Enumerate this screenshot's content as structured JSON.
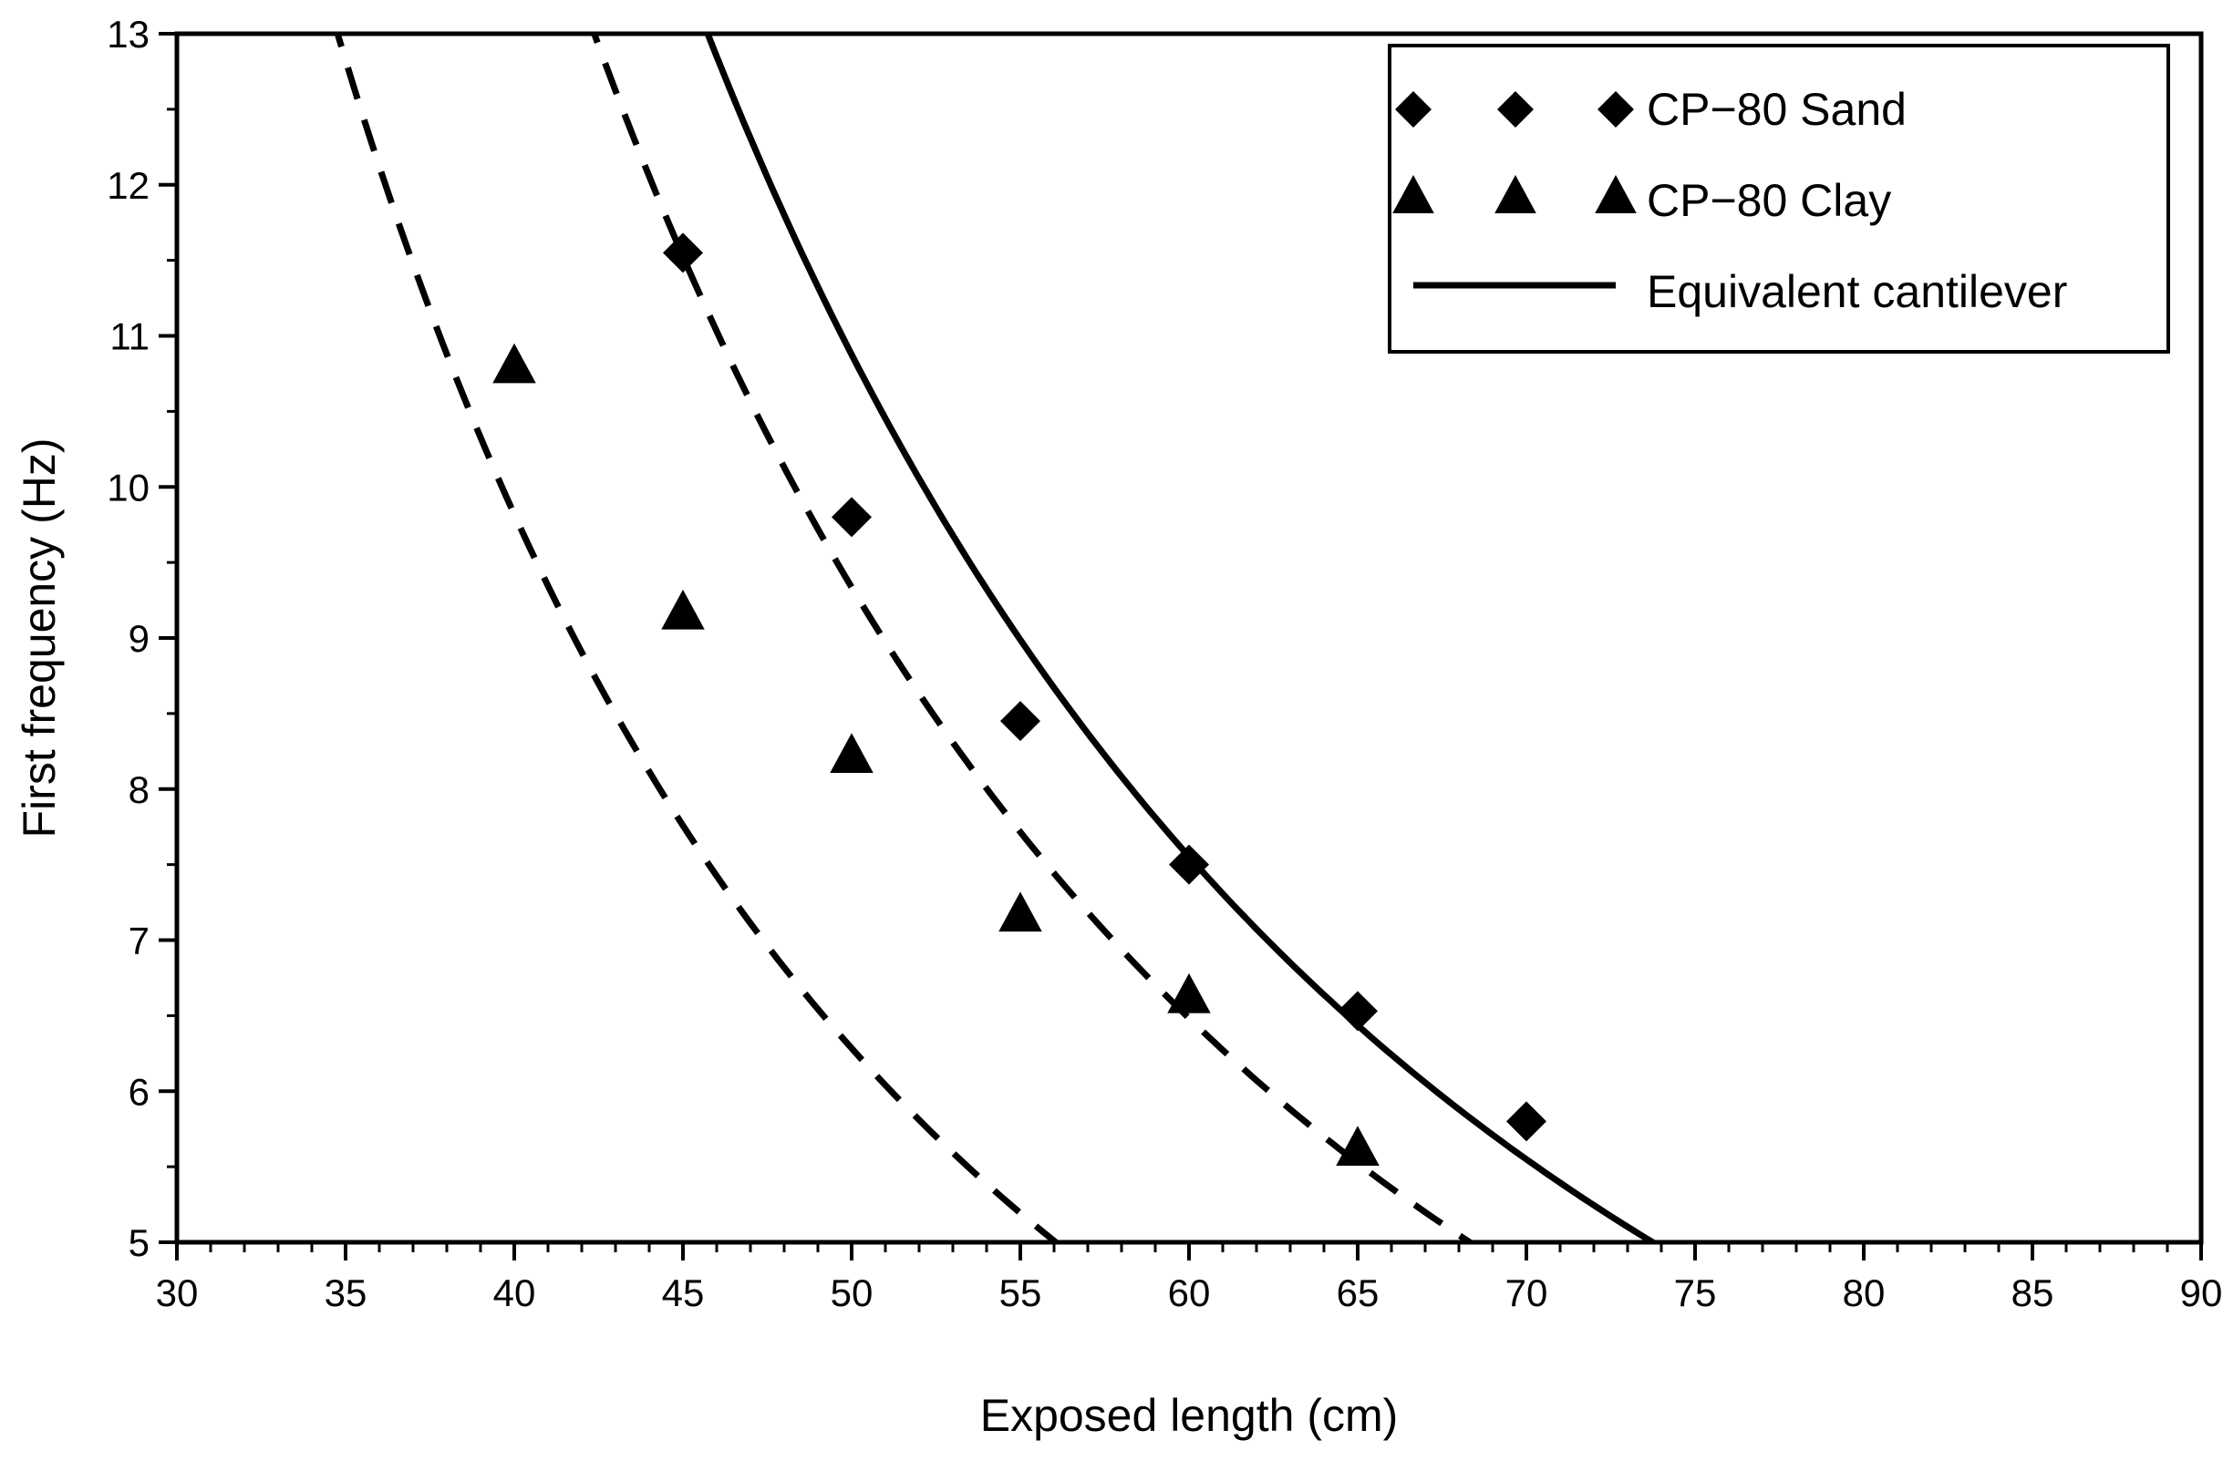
{
  "chart_data": {
    "type": "scatter",
    "title": "",
    "xlabel": "Exposed length (cm)",
    "ylabel": "First frequency (Hz)",
    "xlim": [
      30,
      90
    ],
    "ylim": [
      5,
      13
    ],
    "x_ticks": [
      "30",
      "35",
      "40",
      "45",
      "50",
      "55",
      "60",
      "65",
      "70",
      "75",
      "80",
      "85",
      "90"
    ],
    "y_ticks": [
      "5",
      "6",
      "7",
      "8",
      "9",
      "10",
      "11",
      "12",
      "13"
    ],
    "grid": false,
    "legend_position": "top-right",
    "series": [
      {
        "name": "CP-80 Sand",
        "legend_label": "CP−80 Sand",
        "marker": "diamond",
        "x": [
          45,
          50,
          55,
          60,
          65,
          70
        ],
        "y": [
          11.55,
          9.8,
          8.45,
          7.5,
          6.53,
          5.8
        ],
        "fit": {
          "style": "dashed",
          "coefficient": 23340,
          "exponent": 2,
          "x_range": [
            41.6,
            76.1
          ]
        }
      },
      {
        "name": "CP-80 Clay",
        "legend_label": "CP−80 Clay",
        "marker": "triangle",
        "x": [
          40,
          45,
          50,
          55,
          60,
          65
        ],
        "y": [
          10.8,
          9.17,
          8.22,
          7.17,
          6.63,
          5.62
        ],
        "fit": {
          "style": "dashed",
          "coefficient": 15710,
          "exponent": 2,
          "x_range": [
            34.6,
            69.2
          ]
        }
      },
      {
        "name": "Equivalent cantilever",
        "legend_label": "Equivalent cantilever",
        "marker": "none",
        "line": {
          "style": "solid",
          "coefficient": 27190,
          "exponent": 2,
          "x_range": [
            45.73,
            80.0
          ]
        }
      }
    ]
  }
}
